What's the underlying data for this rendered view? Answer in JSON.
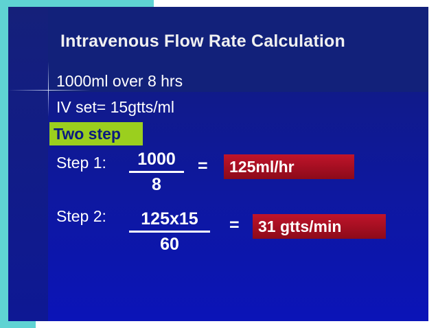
{
  "slide": {
    "title": "Intravenous Flow Rate Calculation",
    "lines": [
      "1000ml over 8 hrs",
      "IV set= 15gtts/ml"
    ],
    "highlight": "Two step",
    "steps": [
      {
        "label": "Step 1:",
        "numerator": "1000",
        "denominator": "8",
        "equals": "=",
        "result": "125ml/hr"
      },
      {
        "label": "Step 2:",
        "numerator": "125x15",
        "denominator": "60",
        "equals": "=",
        "result": "31 gtts/min"
      }
    ]
  },
  "colors": {
    "frame_accent": "#5fd3d3",
    "slide_background": "#0d17a6",
    "highlight_box": "#9bcf1e",
    "result_box": "#b0122a"
  }
}
